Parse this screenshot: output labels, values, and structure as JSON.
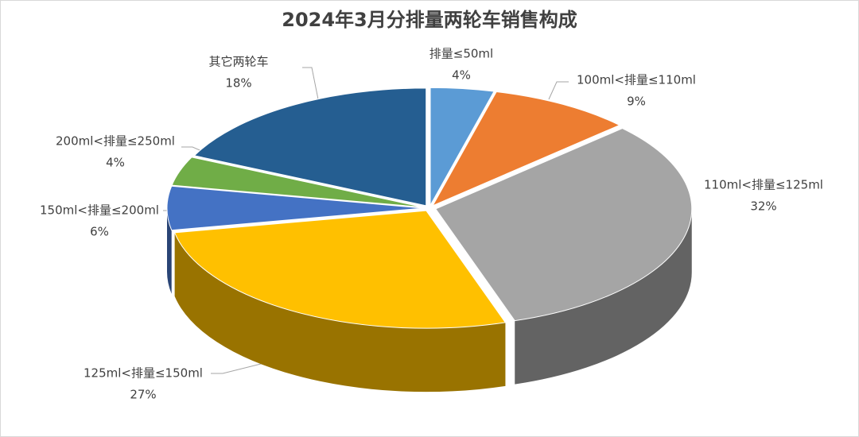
{
  "chart_data": {
    "type": "pie3d",
    "title": "2024年3月分排量两轮车销售构成",
    "categories": [
      "排量≤50ml",
      "100ml<排量≤110ml",
      "110ml<排量≤125ml",
      "125ml<排量≤150ml",
      "150ml<排量≤200ml",
      "200ml<排量≤250ml",
      "其它两轮车"
    ],
    "values": [
      4,
      9,
      32,
      27,
      6,
      4,
      18
    ],
    "value_labels": [
      "4%",
      "9%",
      "32%",
      "27%",
      "6%",
      "4%",
      "18%"
    ],
    "colors": [
      "#5b9bd5",
      "#ed7d31",
      "#a5a5a5",
      "#ffc000",
      "#4472c4",
      "#70ad47",
      "#255e91"
    ]
  }
}
